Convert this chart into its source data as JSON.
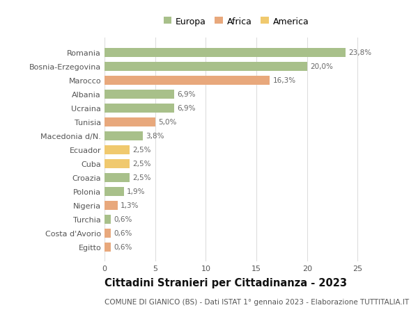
{
  "categories": [
    "Romania",
    "Bosnia-Erzegovina",
    "Marocco",
    "Albania",
    "Ucraina",
    "Tunisia",
    "Macedonia d/N.",
    "Ecuador",
    "Cuba",
    "Croazia",
    "Polonia",
    "Nigeria",
    "Turchia",
    "Costa d'Avorio",
    "Egitto"
  ],
  "values": [
    23.8,
    20.0,
    16.3,
    6.9,
    6.9,
    5.0,
    3.8,
    2.5,
    2.5,
    2.5,
    1.9,
    1.3,
    0.6,
    0.6,
    0.6
  ],
  "labels": [
    "23,8%",
    "20,0%",
    "16,3%",
    "6,9%",
    "6,9%",
    "5,0%",
    "3,8%",
    "2,5%",
    "2,5%",
    "2,5%",
    "1,9%",
    "1,3%",
    "0,6%",
    "0,6%",
    "0,6%"
  ],
  "continents": [
    "Europa",
    "Europa",
    "Africa",
    "Europa",
    "Europa",
    "Africa",
    "Europa",
    "America",
    "America",
    "Europa",
    "Europa",
    "Africa",
    "Europa",
    "Africa",
    "Africa"
  ],
  "colors": {
    "Europa": "#a8c08a",
    "Africa": "#e8a87c",
    "America": "#f0c96e"
  },
  "legend_labels": [
    "Europa",
    "Africa",
    "America"
  ],
  "legend_colors": [
    "#a8c08a",
    "#e8a87c",
    "#f0c96e"
  ],
  "xlim": [
    0,
    26
  ],
  "xticks": [
    0,
    5,
    10,
    15,
    20,
    25
  ],
  "title": "Cittadini Stranieri per Cittadinanza - 2023",
  "subtitle": "COMUNE DI GIANICO (BS) - Dati ISTAT 1° gennaio 2023 - Elaborazione TUTTITALIA.IT",
  "bg_color": "#ffffff",
  "grid_color": "#dddddd",
  "bar_height": 0.65,
  "label_fontsize": 7.5,
  "ytick_fontsize": 8,
  "xtick_fontsize": 8,
  "title_fontsize": 10.5,
  "subtitle_fontsize": 7.5,
  "legend_fontsize": 9
}
